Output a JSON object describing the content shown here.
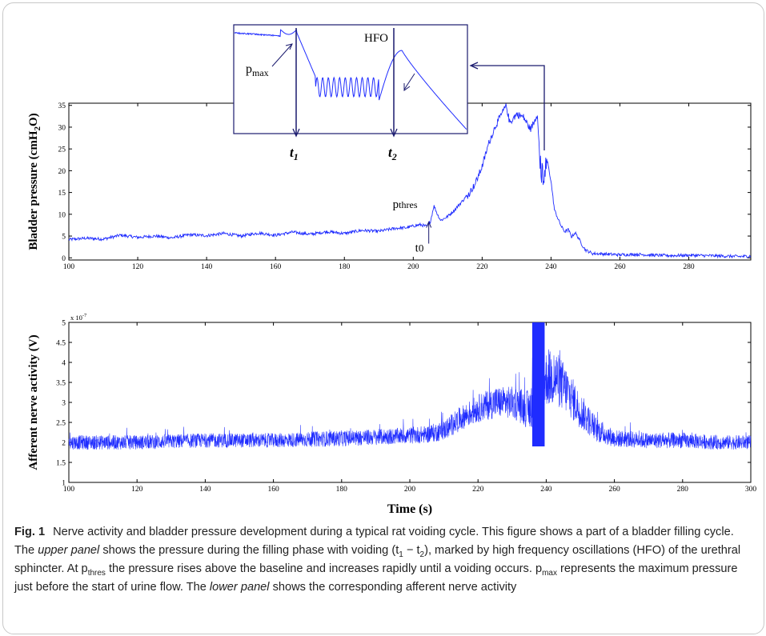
{
  "chart_data": [
    {
      "type": "line",
      "panel": "upper",
      "ylabel": "Bladder pressure (cmH2O)",
      "ylabel_parts": [
        "Bladder pressure (cmH",
        "2",
        "O)"
      ],
      "xlim": [
        100,
        298
      ],
      "ylim": [
        -0.5,
        35.5
      ],
      "xticks": [
        100,
        120,
        140,
        160,
        180,
        200,
        220,
        240,
        260,
        280
      ],
      "yticks": [
        0,
        5,
        10,
        15,
        20,
        25,
        30,
        35
      ],
      "grid": false,
      "color": "#1f2cff",
      "series": [
        {
          "x": [
            100,
            105,
            110,
            115,
            120,
            125,
            130,
            135,
            140,
            145,
            150,
            155,
            160,
            165,
            170,
            175,
            180,
            185,
            190,
            195,
            198,
            200,
            202,
            204,
            205,
            206,
            207,
            208,
            210,
            212,
            214,
            216,
            218,
            220,
            222,
            224,
            226,
            227,
            228,
            230,
            232,
            234,
            235,
            236,
            237,
            238,
            239,
            240,
            241,
            242,
            243,
            244,
            245,
            246,
            247,
            248,
            249,
            250,
            252,
            255,
            260,
            265,
            270,
            275,
            280,
            285,
            290,
            295,
            298
          ],
          "y": [
            4.2,
            4.5,
            4.3,
            5.2,
            4.7,
            5.0,
            4.6,
            5.3,
            5.1,
            5.6,
            5.0,
            5.7,
            5.2,
            5.9,
            5.4,
            6.0,
            5.6,
            6.3,
            6.1,
            6.8,
            6.9,
            7.3,
            7.6,
            7.2,
            8.4,
            12.0,
            10.0,
            8.6,
            9.5,
            11.0,
            12.8,
            14.5,
            17.0,
            21.0,
            26.5,
            30.5,
            33.5,
            35.0,
            31.0,
            33.0,
            32.3,
            29.5,
            31.0,
            33.0,
            20.0,
            19.0,
            22.0,
            17.5,
            11.0,
            9.0,
            7.2,
            6.0,
            6.5,
            4.8,
            5.8,
            4.5,
            3.0,
            1.8,
            1.0,
            0.9,
            0.7,
            0.8,
            0.6,
            0.5,
            0.6,
            0.5,
            0.4,
            0.3,
            0.4
          ]
        }
      ],
      "annotations": {
        "p_thres": {
          "text": "p",
          "sub": "thres",
          "x": 204.5,
          "y": 8.5
        },
        "t0": {
          "text": "t",
          "sub": "0",
          "x": 204.5,
          "y": 4.0
        }
      }
    },
    {
      "type": "line",
      "panel": "lower",
      "ylabel": "Afferent nerve activity (V)",
      "xlabel": "Time (s)",
      "xlim": [
        100,
        300
      ],
      "ylim": [
        1,
        5
      ],
      "xticks": [
        100,
        120,
        140,
        160,
        180,
        200,
        220,
        240,
        260,
        280,
        300
      ],
      "yticks": [
        1,
        1.5,
        2,
        2.5,
        3,
        3.5,
        4,
        4.5,
        5
      ],
      "ytick_labels": [
        "1",
        "1.5",
        "2",
        "2.5",
        "3",
        "3.5",
        "4",
        "4.5",
        "5"
      ],
      "y_exponent": "x 10",
      "y_exponent_power": "-7",
      "grid": false,
      "color": "#1f2cff",
      "envelope": {
        "x": [
          100,
          120,
          140,
          160,
          180,
          195,
          205,
          210,
          215,
          220,
          225,
          230,
          233,
          235,
          236,
          240,
          243,
          246,
          250,
          255,
          260,
          270,
          280,
          290,
          300
        ],
        "center": [
          2.0,
          2.0,
          2.05,
          2.05,
          2.1,
          2.15,
          2.2,
          2.3,
          2.6,
          2.85,
          3.0,
          3.0,
          2.9,
          2.8,
          3.0,
          3.6,
          3.6,
          3.3,
          2.8,
          2.3,
          2.1,
          2.05,
          2.05,
          2.0,
          2.0
        ],
        "amplitude": [
          0.18,
          0.18,
          0.18,
          0.18,
          0.2,
          0.2,
          0.22,
          0.25,
          0.3,
          0.35,
          0.4,
          0.4,
          0.45,
          0.5,
          0.6,
          0.7,
          0.7,
          0.6,
          0.45,
          0.3,
          0.22,
          0.2,
          0.2,
          0.18,
          0.18
        ]
      },
      "burst": {
        "x_start": 236,
        "x_end": 239.5,
        "y_low": 1.9,
        "y_high": 5.0
      }
    }
  ],
  "inset": {
    "label_hfo": "HFO",
    "label_pmax": {
      "text": "p",
      "sub": "max"
    },
    "label_t1": {
      "text": "t",
      "sub": "1"
    },
    "label_t2": {
      "text": "t",
      "sub": "2"
    }
  },
  "caption": {
    "label": "Fig. 1",
    "p1": "Nerve activity and bladder pressure development during a typical rat voiding cycle. This figure shows a part of a bladder filling cycle. The ",
    "upper_panel": "upper panel",
    "p2": " shows the pressure during the filling phase with voiding (t",
    "t1_sub": "1",
    "p3": " − t",
    "t2_sub": "2",
    "p4": "), marked by high frequency oscillations (HFO) of the urethral sphincter. At p",
    "thres_sub": "thres",
    "p5": " the pressure rises above the baseline and increases rapidly until a voiding occurs. p",
    "max_sub": "max",
    "p6": " represents the maximum pressure just before the start of urine flow. The ",
    "lower_panel": "lower panel",
    "p7": " shows the corresponding afferent nerve activity"
  }
}
